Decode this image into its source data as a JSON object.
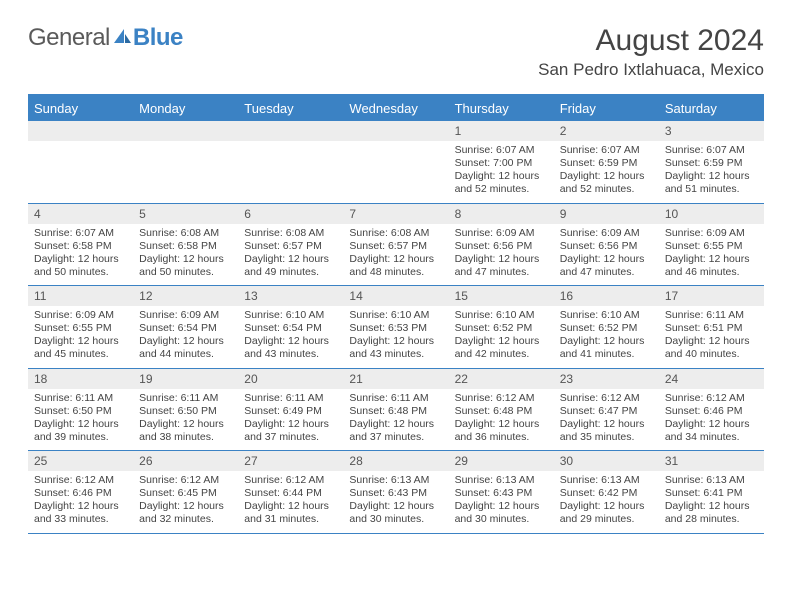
{
  "logo": {
    "text1": "General",
    "text2": "Blue",
    "color1": "#5a5a5a",
    "color2": "#3b82c4"
  },
  "title": {
    "month_year": "August 2024",
    "location": "San Pedro Ixtlahuaca, Mexico"
  },
  "colors": {
    "header_bg": "#3b82c4",
    "header_text": "#ffffff",
    "daynum_bg": "#ededed",
    "border": "#3b82c4",
    "body_text": "#444444"
  },
  "day_names": [
    "Sunday",
    "Monday",
    "Tuesday",
    "Wednesday",
    "Thursday",
    "Friday",
    "Saturday"
  ],
  "weeks": [
    [
      null,
      null,
      null,
      null,
      {
        "n": "1",
        "sunrise": "Sunrise: 6:07 AM",
        "sunset": "Sunset: 7:00 PM",
        "daylight": "Daylight: 12 hours and 52 minutes."
      },
      {
        "n": "2",
        "sunrise": "Sunrise: 6:07 AM",
        "sunset": "Sunset: 6:59 PM",
        "daylight": "Daylight: 12 hours and 52 minutes."
      },
      {
        "n": "3",
        "sunrise": "Sunrise: 6:07 AM",
        "sunset": "Sunset: 6:59 PM",
        "daylight": "Daylight: 12 hours and 51 minutes."
      }
    ],
    [
      {
        "n": "4",
        "sunrise": "Sunrise: 6:07 AM",
        "sunset": "Sunset: 6:58 PM",
        "daylight": "Daylight: 12 hours and 50 minutes."
      },
      {
        "n": "5",
        "sunrise": "Sunrise: 6:08 AM",
        "sunset": "Sunset: 6:58 PM",
        "daylight": "Daylight: 12 hours and 50 minutes."
      },
      {
        "n": "6",
        "sunrise": "Sunrise: 6:08 AM",
        "sunset": "Sunset: 6:57 PM",
        "daylight": "Daylight: 12 hours and 49 minutes."
      },
      {
        "n": "7",
        "sunrise": "Sunrise: 6:08 AM",
        "sunset": "Sunset: 6:57 PM",
        "daylight": "Daylight: 12 hours and 48 minutes."
      },
      {
        "n": "8",
        "sunrise": "Sunrise: 6:09 AM",
        "sunset": "Sunset: 6:56 PM",
        "daylight": "Daylight: 12 hours and 47 minutes."
      },
      {
        "n": "9",
        "sunrise": "Sunrise: 6:09 AM",
        "sunset": "Sunset: 6:56 PM",
        "daylight": "Daylight: 12 hours and 47 minutes."
      },
      {
        "n": "10",
        "sunrise": "Sunrise: 6:09 AM",
        "sunset": "Sunset: 6:55 PM",
        "daylight": "Daylight: 12 hours and 46 minutes."
      }
    ],
    [
      {
        "n": "11",
        "sunrise": "Sunrise: 6:09 AM",
        "sunset": "Sunset: 6:55 PM",
        "daylight": "Daylight: 12 hours and 45 minutes."
      },
      {
        "n": "12",
        "sunrise": "Sunrise: 6:09 AM",
        "sunset": "Sunset: 6:54 PM",
        "daylight": "Daylight: 12 hours and 44 minutes."
      },
      {
        "n": "13",
        "sunrise": "Sunrise: 6:10 AM",
        "sunset": "Sunset: 6:54 PM",
        "daylight": "Daylight: 12 hours and 43 minutes."
      },
      {
        "n": "14",
        "sunrise": "Sunrise: 6:10 AM",
        "sunset": "Sunset: 6:53 PM",
        "daylight": "Daylight: 12 hours and 43 minutes."
      },
      {
        "n": "15",
        "sunrise": "Sunrise: 6:10 AM",
        "sunset": "Sunset: 6:52 PM",
        "daylight": "Daylight: 12 hours and 42 minutes."
      },
      {
        "n": "16",
        "sunrise": "Sunrise: 6:10 AM",
        "sunset": "Sunset: 6:52 PM",
        "daylight": "Daylight: 12 hours and 41 minutes."
      },
      {
        "n": "17",
        "sunrise": "Sunrise: 6:11 AM",
        "sunset": "Sunset: 6:51 PM",
        "daylight": "Daylight: 12 hours and 40 minutes."
      }
    ],
    [
      {
        "n": "18",
        "sunrise": "Sunrise: 6:11 AM",
        "sunset": "Sunset: 6:50 PM",
        "daylight": "Daylight: 12 hours and 39 minutes."
      },
      {
        "n": "19",
        "sunrise": "Sunrise: 6:11 AM",
        "sunset": "Sunset: 6:50 PM",
        "daylight": "Daylight: 12 hours and 38 minutes."
      },
      {
        "n": "20",
        "sunrise": "Sunrise: 6:11 AM",
        "sunset": "Sunset: 6:49 PM",
        "daylight": "Daylight: 12 hours and 37 minutes."
      },
      {
        "n": "21",
        "sunrise": "Sunrise: 6:11 AM",
        "sunset": "Sunset: 6:48 PM",
        "daylight": "Daylight: 12 hours and 37 minutes."
      },
      {
        "n": "22",
        "sunrise": "Sunrise: 6:12 AM",
        "sunset": "Sunset: 6:48 PM",
        "daylight": "Daylight: 12 hours and 36 minutes."
      },
      {
        "n": "23",
        "sunrise": "Sunrise: 6:12 AM",
        "sunset": "Sunset: 6:47 PM",
        "daylight": "Daylight: 12 hours and 35 minutes."
      },
      {
        "n": "24",
        "sunrise": "Sunrise: 6:12 AM",
        "sunset": "Sunset: 6:46 PM",
        "daylight": "Daylight: 12 hours and 34 minutes."
      }
    ],
    [
      {
        "n": "25",
        "sunrise": "Sunrise: 6:12 AM",
        "sunset": "Sunset: 6:46 PM",
        "daylight": "Daylight: 12 hours and 33 minutes."
      },
      {
        "n": "26",
        "sunrise": "Sunrise: 6:12 AM",
        "sunset": "Sunset: 6:45 PM",
        "daylight": "Daylight: 12 hours and 32 minutes."
      },
      {
        "n": "27",
        "sunrise": "Sunrise: 6:12 AM",
        "sunset": "Sunset: 6:44 PM",
        "daylight": "Daylight: 12 hours and 31 minutes."
      },
      {
        "n": "28",
        "sunrise": "Sunrise: 6:13 AM",
        "sunset": "Sunset: 6:43 PM",
        "daylight": "Daylight: 12 hours and 30 minutes."
      },
      {
        "n": "29",
        "sunrise": "Sunrise: 6:13 AM",
        "sunset": "Sunset: 6:43 PM",
        "daylight": "Daylight: 12 hours and 30 minutes."
      },
      {
        "n": "30",
        "sunrise": "Sunrise: 6:13 AM",
        "sunset": "Sunset: 6:42 PM",
        "daylight": "Daylight: 12 hours and 29 minutes."
      },
      {
        "n": "31",
        "sunrise": "Sunrise: 6:13 AM",
        "sunset": "Sunset: 6:41 PM",
        "daylight": "Daylight: 12 hours and 28 minutes."
      }
    ]
  ]
}
